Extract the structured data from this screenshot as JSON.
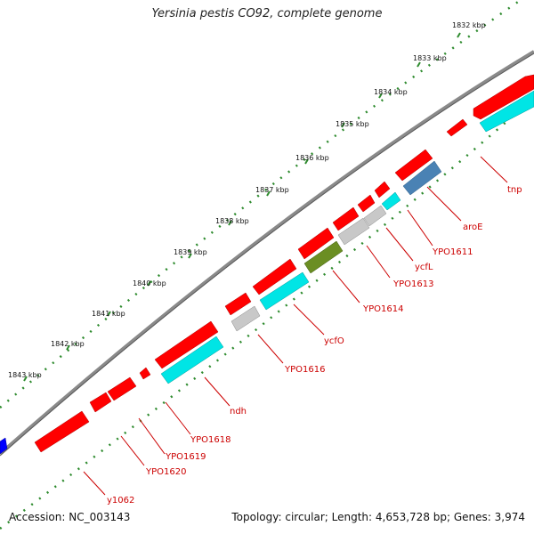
{
  "map": {
    "title": "Yersinia pestis CO92, complete genome",
    "accession": "Accession: NC_003143",
    "summary": "Topology: circular; Length: 4,653,728 bp; Genes: 3,974",
    "ticks": [
      "1832 kbp",
      "1833 kbp",
      "1834 kbp",
      "1835 kbp",
      "1836 kbp",
      "1837 kbp",
      "1838 kbp",
      "1839 kbp",
      "1840 kbp",
      "1841 kbp",
      "1842 kbp",
      "1843 kbp"
    ],
    "gene_labels": [
      "tnp",
      "aroE",
      "YPO1611",
      "ycfL",
      "YPO1613",
      "YPO1614",
      "ycfO",
      "YPO1616",
      "ndh",
      "YPO1618",
      "YPO1619",
      "YPO1620",
      "y1062"
    ],
    "colors": {
      "red": "#ff0000",
      "cyan": "#00e5e5",
      "steelblue": "#4a82b4",
      "olive": "#6b8e23",
      "grey": "#c8c8c8",
      "blue": "#0000ff",
      "backbone": "#808080",
      "tick": "#2e8b2e",
      "label": "#cc0000"
    }
  }
}
